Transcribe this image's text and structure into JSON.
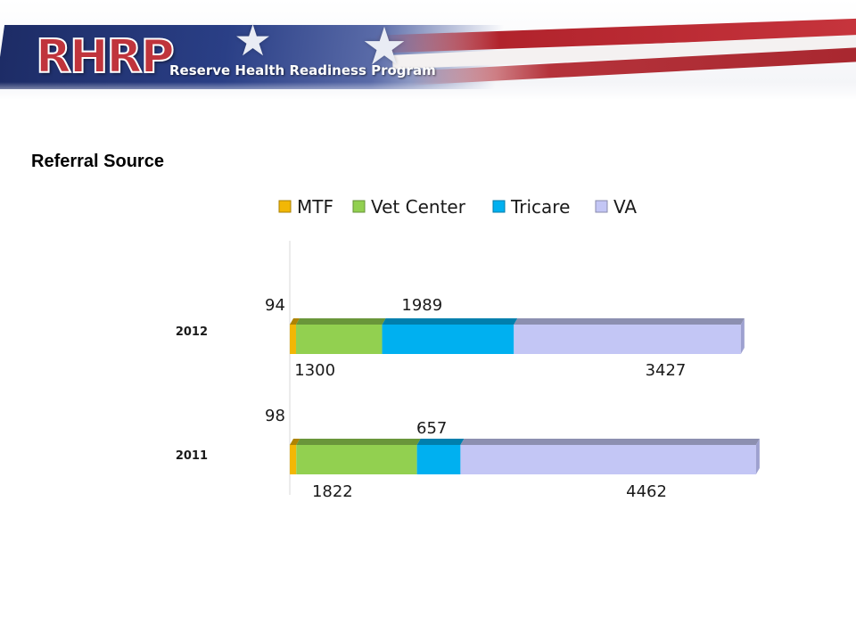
{
  "header": {
    "logo_text": "RHRP",
    "program_name": "Reserve Health Readiness Program"
  },
  "slide": {
    "title": "Referral Source"
  },
  "colors": {
    "MTF": "#f2b705",
    "Vet Center": "#92d050",
    "Tricare": "#00b0f0",
    "VA": "#c3c6f5"
  },
  "chart_data": {
    "type": "bar",
    "orientation": "horizontal",
    "stacked": true,
    "legend_position": "top",
    "categories": [
      "2012",
      "2011"
    ],
    "series": [
      {
        "name": "MTF",
        "values": [
          94,
          98
        ]
      },
      {
        "name": "Vet Center",
        "values": [
          1300,
          1822
        ]
      },
      {
        "name": "Tricare",
        "values": [
          1989,
          657
        ]
      },
      {
        "name": "VA",
        "values": [
          3427,
          4462
        ]
      }
    ]
  }
}
